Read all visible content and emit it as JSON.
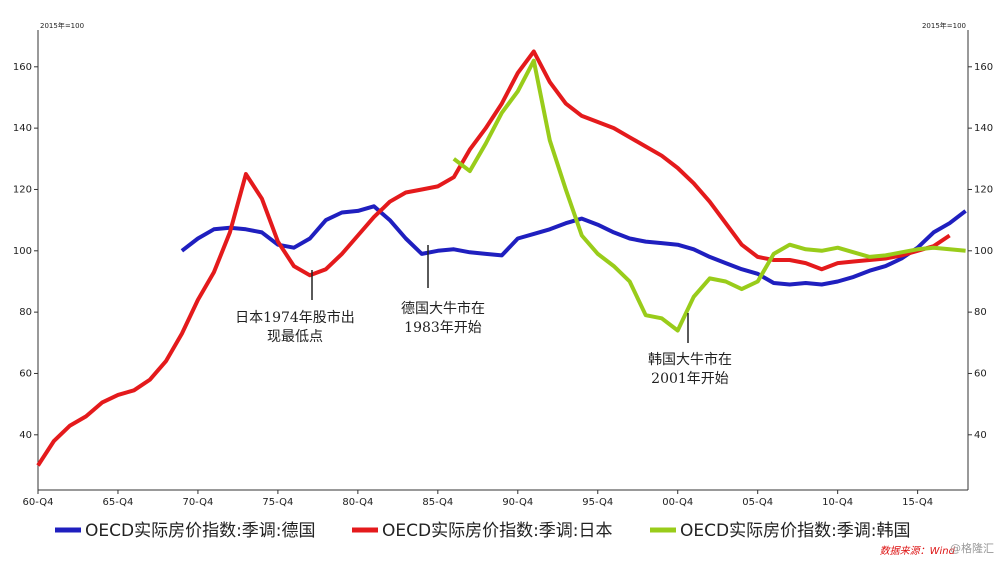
{
  "chart_data": {
    "type": "line",
    "unit_left": "2015年=100",
    "unit_right": "2015年=100",
    "x": [
      1960.75,
      1961.75,
      1962.75,
      1963.75,
      1964.75,
      1965.75,
      1966.75,
      1967.75,
      1968.75,
      1969.75,
      1970.75,
      1971.75,
      1972.75,
      1973.75,
      1974.75,
      1975.75,
      1976.75,
      1977.75,
      1978.75,
      1979.75,
      1980.75,
      1981.75,
      1982.75,
      1983.75,
      1984.75,
      1985.75,
      1986.75,
      1987.75,
      1988.75,
      1989.75,
      1990.75,
      1991.75,
      1992.75,
      1993.75,
      1994.75,
      1995.75,
      1996.75,
      1997.75,
      1998.75,
      1999.75,
      2000.75,
      2001.75,
      2002.75,
      2003.75,
      2004.75,
      2005.75,
      2006.75,
      2007.75,
      2008.75,
      2009.75,
      2010.75,
      2011.75,
      2012.75,
      2013.75,
      2014.75,
      2015.75,
      2016.75,
      2017.75,
      2018.75
    ],
    "xlim": [
      1960.75,
      2018.9
    ],
    "xticks": [
      {
        "value": 1960.75,
        "label": "60-Q4"
      },
      {
        "value": 1965.75,
        "label": "65-Q4"
      },
      {
        "value": 1970.75,
        "label": "70-Q4"
      },
      {
        "value": 1975.75,
        "label": "75-Q4"
      },
      {
        "value": 1980.75,
        "label": "80-Q4"
      },
      {
        "value": 1985.75,
        "label": "85-Q4"
      },
      {
        "value": 1990.75,
        "label": "90-Q4"
      },
      {
        "value": 1995.75,
        "label": "95-Q4"
      },
      {
        "value": 2000.75,
        "label": "00-Q4"
      },
      {
        "value": 2005.75,
        "label": "05-Q4"
      },
      {
        "value": 2010.75,
        "label": "10-Q4"
      },
      {
        "value": 2015.75,
        "label": "15-Q4"
      }
    ],
    "ylim": [
      22,
      172
    ],
    "yticks": [
      40,
      60,
      80,
      100,
      120,
      140,
      160
    ],
    "y2lim": [
      22,
      172
    ],
    "y2ticks": [
      40,
      60,
      80,
      100,
      120,
      140,
      160
    ],
    "series": [
      {
        "name": "OECD实际房价指数:季调:德国",
        "color": "#1f1fbf",
        "values": [
          null,
          null,
          null,
          null,
          null,
          null,
          null,
          null,
          null,
          100,
          104,
          107,
          107.5,
          107,
          106,
          102,
          101,
          104,
          110,
          112.5,
          113,
          114.5,
          110,
          104,
          99,
          100,
          100.5,
          99.5,
          99,
          98.5,
          104,
          105.5,
          107,
          109,
          110.5,
          108.5,
          106,
          104,
          103,
          102.5,
          102,
          100.5,
          98,
          96,
          94,
          92.5,
          89.5,
          89,
          89.5,
          89,
          90,
          91.5,
          93.5,
          95,
          97.5,
          101,
          106,
          109,
          113
        ]
      },
      {
        "name": "OECD实际房价指数:季调:日本",
        "color": "#e41a1c",
        "values": [
          30,
          38,
          43,
          46,
          50.5,
          53,
          54.5,
          58,
          64,
          73,
          84,
          93,
          106,
          125,
          117,
          103,
          95,
          92,
          94,
          99,
          105,
          111,
          116,
          119,
          120,
          121,
          124,
          133,
          140,
          148,
          158,
          165,
          155,
          148,
          144,
          142,
          140,
          137,
          134,
          131,
          127,
          122,
          116,
          109,
          102,
          98,
          97,
          97,
          96,
          94,
          96,
          96.5,
          97,
          97.5,
          98.5,
          100,
          101.5,
          105,
          null
        ]
      },
      {
        "name": "OECD实际房价指数:季调:韩国",
        "color": "#99cc1a",
        "values": [
          null,
          null,
          null,
          null,
          null,
          null,
          null,
          null,
          null,
          null,
          null,
          null,
          null,
          null,
          null,
          null,
          null,
          null,
          null,
          null,
          null,
          null,
          null,
          null,
          null,
          null,
          130,
          126,
          135,
          145,
          152,
          162,
          136,
          120,
          105,
          99,
          95,
          90,
          79,
          78,
          74,
          85,
          91,
          90,
          87.5,
          90,
          99,
          102,
          100.5,
          100,
          101,
          99.5,
          98,
          98.5,
          99.5,
          100.5,
          101,
          100.5,
          100
        ]
      }
    ],
    "annotations": [
      {
        "lines": [
          "日本1974年股市出",
          "现最低点"
        ]
      },
      {
        "lines": [
          "德国大牛市在",
          "1983年开始"
        ]
      },
      {
        "lines": [
          "韩国大牛市在",
          "2001年开始"
        ]
      }
    ],
    "source": "数据来源：Wind",
    "watermark": "@格隆汇"
  }
}
